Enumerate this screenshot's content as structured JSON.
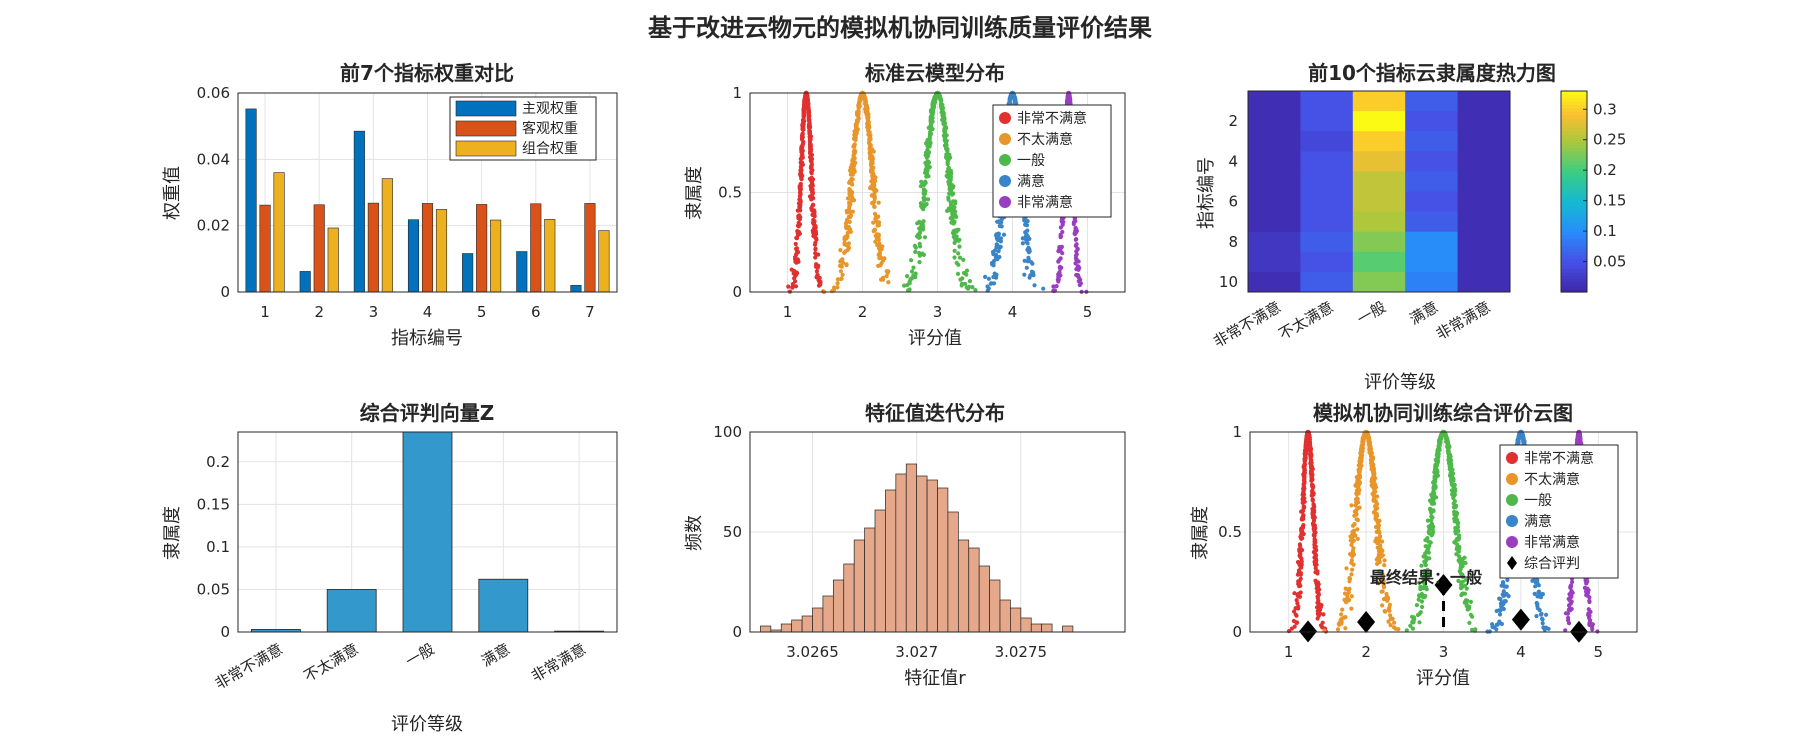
{
  "figure": {
    "title": "基于改进云物元的模拟机协同训练质量评价结果"
  },
  "colors": {
    "very_unsatisfied": "#e03030",
    "unsatisfied": "#e8952a",
    "neutral": "#4fb84a",
    "satisfied": "#3a84c8",
    "very_satisfied": "#9a3ec0",
    "bar_subjective": "#0072bd",
    "bar_objective": "#d95319",
    "bar_combined": "#edb120",
    "bar_z": "#3399cc",
    "hist": "#e6a88a"
  },
  "chart_data": [
    {
      "type": "bar",
      "title": "前7个指标权重对比",
      "xlabel": "指标编号",
      "ylabel": "权重值",
      "categories": [
        "1",
        "2",
        "3",
        "4",
        "5",
        "6",
        "7"
      ],
      "ylim": [
        0,
        0.06
      ],
      "yticks": [
        "0",
        "0.02",
        "0.04",
        "0.06"
      ],
      "series": [
        {
          "name": "主观权重",
          "values": [
            0.0552,
            0.0062,
            0.0485,
            0.0218,
            0.0116,
            0.0122,
            0.002
          ]
        },
        {
          "name": "客观权重",
          "values": [
            0.0262,
            0.0263,
            0.0268,
            0.0267,
            0.0264,
            0.0266,
            0.0267
          ]
        },
        {
          "name": "组合权重",
          "values": [
            0.036,
            0.0193,
            0.0342,
            0.0249,
            0.0217,
            0.0219,
            0.0185
          ]
        }
      ],
      "grid": true,
      "legend": "top-right"
    },
    {
      "type": "scatter",
      "title": "标准云模型分布",
      "xlabel": "评分值",
      "ylabel": "隶属度",
      "xlim": [
        0.5,
        5.5
      ],
      "ylim": [
        0,
        1
      ],
      "xticks": [
        "1",
        "2",
        "3",
        "4",
        "5"
      ],
      "yticks": [
        "0",
        "0.5",
        "1"
      ],
      "series": [
        {
          "name": "非常不满意",
          "Ex": 1.25,
          "En": 0.07
        },
        {
          "name": "不太满意",
          "Ex": 2.0,
          "En": 0.13
        },
        {
          "name": "一般",
          "Ex": 3.0,
          "En": 0.15
        },
        {
          "name": "满意",
          "Ex": 4.0,
          "En": 0.12
        },
        {
          "name": "非常满意",
          "Ex": 4.75,
          "En": 0.06
        }
      ],
      "grid": true,
      "legend": "top-right"
    },
    {
      "type": "heatmap",
      "title": "前10个指标云隶属度热力图",
      "xlabel": "评价等级",
      "ylabel": "指标编号",
      "categories": [
        "非常不满意",
        "不太满意",
        "一般",
        "满意",
        "非常满意"
      ],
      "rows": [
        "1",
        "2",
        "3",
        "4",
        "5",
        "6",
        "7",
        "8",
        "9",
        "10"
      ],
      "yticks": [
        "2",
        "4",
        "6",
        "8",
        "10"
      ],
      "values": [
        [
          0.01,
          0.05,
          0.3,
          0.06,
          0.01
        ],
        [
          0.01,
          0.05,
          0.33,
          0.05,
          0.01
        ],
        [
          0.01,
          0.04,
          0.3,
          0.06,
          0.01
        ],
        [
          0.01,
          0.05,
          0.28,
          0.05,
          0.01
        ],
        [
          0.01,
          0.05,
          0.26,
          0.06,
          0.01
        ],
        [
          0.01,
          0.05,
          0.26,
          0.05,
          0.01
        ],
        [
          0.01,
          0.05,
          0.25,
          0.06,
          0.01
        ],
        [
          0.02,
          0.06,
          0.23,
          0.1,
          0.01
        ],
        [
          0.02,
          0.05,
          0.21,
          0.1,
          0.01
        ],
        [
          0.01,
          0.06,
          0.23,
          0.09,
          0.01
        ]
      ],
      "colorbar": {
        "min": 0,
        "max": 0.33,
        "ticks": [
          "0.05",
          "0.1",
          "0.15",
          "0.2",
          "0.25",
          "0.3"
        ]
      }
    },
    {
      "type": "bar",
      "title": "综合评判向量Z",
      "xlabel": "评价等级",
      "ylabel": "隶属度",
      "categories": [
        "非常不满意",
        "不太满意",
        "一般",
        "满意",
        "非常满意"
      ],
      "values": [
        0.003,
        0.05,
        0.235,
        0.062,
        0.001
      ],
      "ylim": [
        0,
        0.235
      ],
      "yticks": [
        "0",
        "0.05",
        "0.1",
        "0.15",
        "0.2"
      ],
      "grid": true
    },
    {
      "type": "bar",
      "title": "特征值迭代分布",
      "xlabel": "特征值r",
      "ylabel": "频数",
      "xlim": [
        3.0262,
        3.028
      ],
      "xticks": [
        "3.0265",
        "3.027",
        "3.0275"
      ],
      "ylim": [
        0,
        100
      ],
      "yticks": [
        "0",
        "50",
        "100"
      ],
      "bin_start": 3.02625,
      "bin_width": 5e-05,
      "values": [
        3,
        1,
        4,
        6,
        8,
        12,
        18,
        26,
        34,
        46,
        52,
        61,
        71,
        79,
        84,
        78,
        76,
        72,
        60,
        46,
        42,
        33,
        26,
        16,
        12,
        7,
        4,
        4,
        0,
        3
      ],
      "grid": true
    },
    {
      "type": "scatter",
      "title": "模拟机协同训练综合评价云图",
      "xlabel": "评分值",
      "ylabel": "隶属度",
      "xlim": [
        0.5,
        5.5
      ],
      "ylim": [
        0,
        1
      ],
      "xticks": [
        "1",
        "2",
        "3",
        "4",
        "5"
      ],
      "yticks": [
        "0",
        "0.5",
        "1"
      ],
      "series": [
        {
          "name": "非常不满意",
          "Ex": 1.25,
          "En": 0.07
        },
        {
          "name": "不太满意",
          "Ex": 2.0,
          "En": 0.13
        },
        {
          "name": "一般",
          "Ex": 3.0,
          "En": 0.15
        },
        {
          "name": "满意",
          "Ex": 4.0,
          "En": 0.12
        },
        {
          "name": "非常满意",
          "Ex": 4.75,
          "En": 0.06
        }
      ],
      "markers": {
        "name": "综合评判",
        "x": [
          1.25,
          2.0,
          3.0,
          4.0,
          4.75
        ],
        "y": [
          0.003,
          0.05,
          0.235,
          0.062,
          0.001
        ]
      },
      "vline_x": 3.0,
      "annotation": "最终结果：一般",
      "grid": true,
      "legend": "top-right"
    }
  ]
}
